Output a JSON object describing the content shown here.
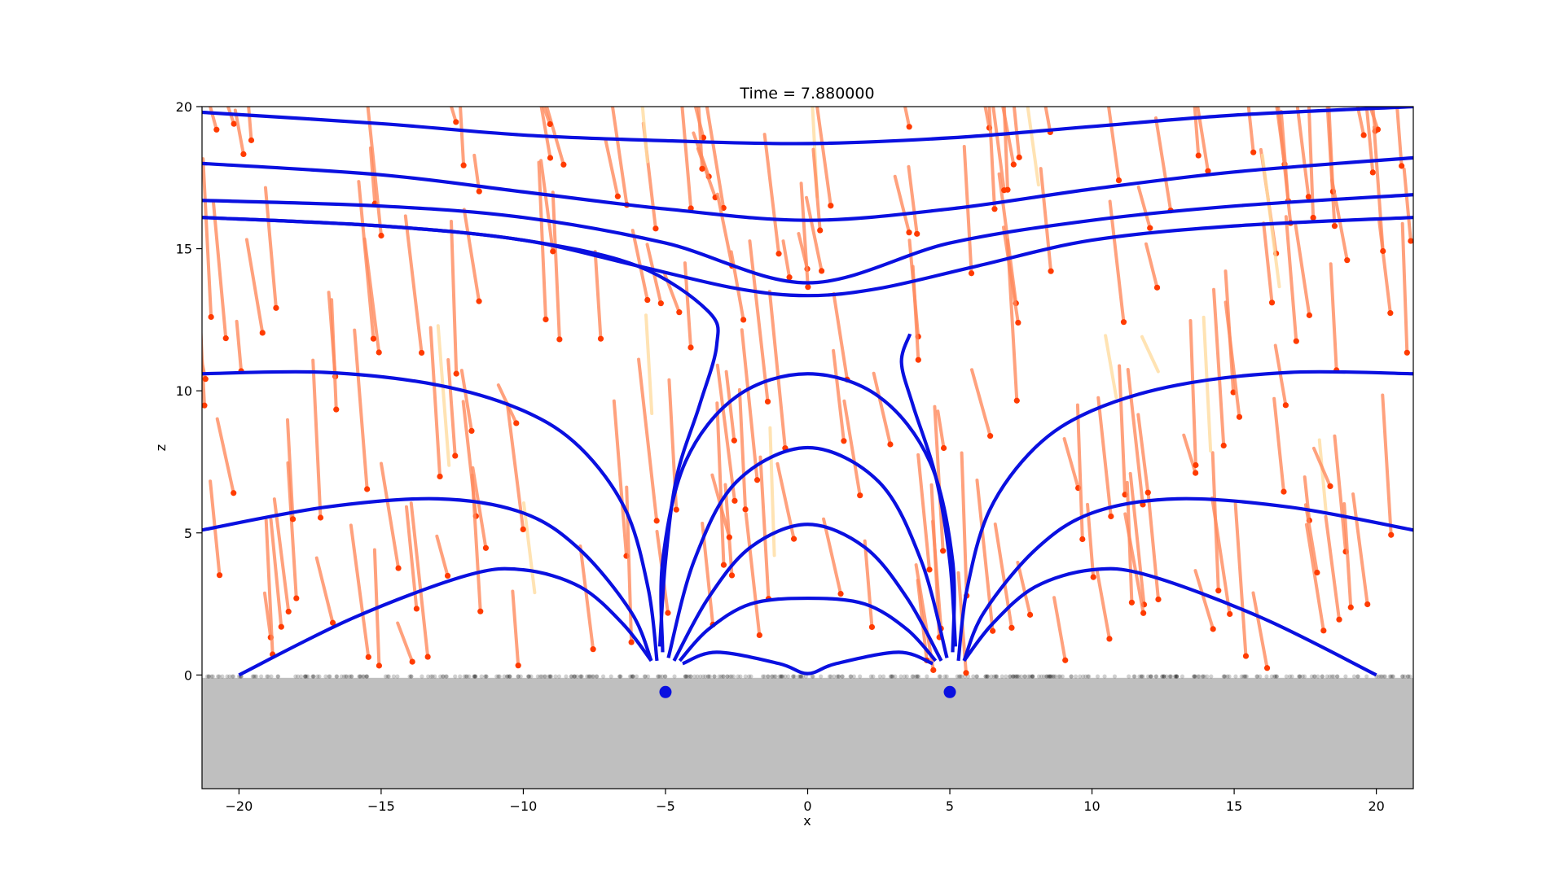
{
  "chart_data": {
    "type": "line",
    "title": "Time = 7.880000",
    "xlabel": "x",
    "ylabel": "z",
    "xlim": [
      -21.3,
      21.3
    ],
    "ylim": [
      -4,
      20
    ],
    "xticks": [
      -20,
      -15,
      -10,
      -5,
      0,
      5,
      10,
      15,
      20
    ],
    "yticks": [
      0,
      5,
      10,
      15,
      20
    ],
    "grid": false,
    "legend": "none",
    "colors": {
      "field_line": "#0a10e0",
      "trajectory": "#ff8a5c",
      "particle": "#ff3b00",
      "faded_trajectory": "#ffdca0",
      "ground": "#bfbfbf",
      "sources": "#0a10e0",
      "surface_dots": "#000000"
    },
    "sources": [
      {
        "x": -5,
        "z": -0.6
      },
      {
        "x": 5,
        "z": -0.6
      }
    ],
    "field_lines": [
      {
        "points": [
          [
            -21.3,
            19.8
          ],
          [
            -15,
            19.4
          ],
          [
            -10,
            19.0
          ],
          [
            -5,
            18.8
          ],
          [
            0,
            18.7
          ],
          [
            5,
            18.9
          ],
          [
            10,
            19.3
          ],
          [
            15,
            19.7
          ],
          [
            21.3,
            20.0
          ]
        ]
      },
      {
        "points": [
          [
            -21.3,
            18.0
          ],
          [
            -15,
            17.6
          ],
          [
            -10,
            17.0
          ],
          [
            -5,
            16.4
          ],
          [
            0,
            16.0
          ],
          [
            5,
            16.4
          ],
          [
            10,
            17.1
          ],
          [
            15,
            17.7
          ],
          [
            21.3,
            18.2
          ]
        ]
      },
      {
        "points": [
          [
            -21.3,
            16.7
          ],
          [
            -15,
            16.5
          ],
          [
            -10,
            16.1
          ],
          [
            -5,
            15.2
          ],
          [
            0,
            13.8
          ],
          [
            5,
            15.2
          ],
          [
            10,
            16.0
          ],
          [
            15,
            16.5
          ],
          [
            21.3,
            16.9
          ]
        ]
      },
      {
        "points": [
          [
            -21.3,
            16.1
          ],
          [
            -15,
            15.8
          ],
          [
            -10,
            15.3
          ],
          [
            -6,
            14.4
          ],
          [
            -3.5,
            12.8
          ],
          [
            -3.2,
            11.6
          ],
          [
            -3.8,
            9.5
          ],
          [
            -4.6,
            7
          ],
          [
            -5.0,
            4
          ],
          [
            -5.2,
            1
          ]
        ]
      },
      {
        "points": [
          [
            -21.3,
            16.1
          ],
          [
            -15,
            15.8
          ],
          [
            -10,
            15.3
          ],
          [
            -6,
            14.4
          ],
          [
            -2.5,
            13.6
          ],
          [
            0,
            13.35
          ],
          [
            2.5,
            13.6
          ],
          [
            6,
            14.4
          ],
          [
            10,
            15.3
          ],
          [
            15,
            15.8
          ],
          [
            21.3,
            16.1
          ]
        ]
      },
      {
        "points": [
          [
            3.6,
            12.0
          ],
          [
            3.3,
            11
          ],
          [
            3.7,
            9.5
          ],
          [
            4.5,
            7
          ],
          [
            5.0,
            4
          ],
          [
            5.2,
            1
          ]
        ]
      },
      {
        "points": [
          [
            -21.3,
            10.6
          ],
          [
            -17,
            10.65
          ],
          [
            -13,
            10.2
          ],
          [
            -10,
            9.3
          ],
          [
            -8,
            8.0
          ],
          [
            -6.4,
            5.8
          ],
          [
            -5.6,
            3
          ],
          [
            -5.3,
            0.5
          ]
        ]
      },
      {
        "points": [
          [
            5.3,
            0.5
          ],
          [
            5.6,
            3
          ],
          [
            6.4,
            5.8
          ],
          [
            8,
            8.0
          ],
          [
            10,
            9.3
          ],
          [
            13,
            10.2
          ],
          [
            17,
            10.65
          ],
          [
            21.3,
            10.6
          ]
        ]
      },
      {
        "points": [
          [
            -21.3,
            5.1
          ],
          [
            -17,
            5.9
          ],
          [
            -13,
            6.2
          ],
          [
            -10,
            5.7
          ],
          [
            -8,
            4.4
          ],
          [
            -6.2,
            2.2
          ],
          [
            -5.5,
            0.5
          ]
        ]
      },
      {
        "points": [
          [
            5.5,
            0.5
          ],
          [
            6.2,
            2.2
          ],
          [
            8,
            4.4
          ],
          [
            10,
            5.7
          ],
          [
            13,
            6.2
          ],
          [
            17,
            5.9
          ],
          [
            21.3,
            5.1
          ]
        ]
      },
      {
        "points": [
          [
            -20,
            0
          ],
          [
            -16,
            2.0
          ],
          [
            -12,
            3.5
          ],
          [
            -10,
            3.7
          ],
          [
            -8,
            3.1
          ],
          [
            -6.5,
            1.8
          ],
          [
            -5.5,
            0.5
          ]
        ]
      },
      {
        "points": [
          [
            5.5,
            0.5
          ],
          [
            6.5,
            1.8
          ],
          [
            8,
            3.1
          ],
          [
            10,
            3.7
          ],
          [
            12,
            3.5
          ],
          [
            16,
            2.0
          ],
          [
            20,
            0
          ]
        ]
      },
      {
        "points": [
          [
            -5.1,
            0.8
          ],
          [
            -5.1,
            4
          ],
          [
            -4.3,
            7.5
          ],
          [
            -2.5,
            9.8
          ],
          [
            0,
            10.6
          ],
          [
            2.5,
            9.8
          ],
          [
            4.3,
            7.5
          ],
          [
            5.1,
            4
          ],
          [
            5.1,
            0.8
          ]
        ]
      },
      {
        "points": [
          [
            -4.9,
            0.6
          ],
          [
            -4,
            4
          ],
          [
            -2.5,
            6.8
          ],
          [
            0,
            8.0
          ],
          [
            2.5,
            6.8
          ],
          [
            4,
            4
          ],
          [
            4.9,
            0.6
          ]
        ]
      },
      {
        "points": [
          [
            -4.7,
            0.5
          ],
          [
            -3.5,
            2.7
          ],
          [
            -2,
            4.5
          ],
          [
            0,
            5.3
          ],
          [
            2,
            4.5
          ],
          [
            3.5,
            2.7
          ],
          [
            4.7,
            0.5
          ]
        ]
      },
      {
        "points": [
          [
            -4.5,
            0.5
          ],
          [
            -3.5,
            1.6
          ],
          [
            -2,
            2.5
          ],
          [
            0,
            2.7
          ],
          [
            2,
            2.5
          ],
          [
            3.5,
            1.6
          ],
          [
            4.5,
            0.5
          ]
        ]
      },
      {
        "points": [
          [
            -4.4,
            0.4
          ],
          [
            -3.2,
            0.8
          ],
          [
            -1,
            0.4
          ],
          [
            0,
            0.05
          ],
          [
            1,
            0.4
          ],
          [
            3.2,
            0.8
          ],
          [
            4.4,
            0.4
          ]
        ]
      }
    ]
  }
}
